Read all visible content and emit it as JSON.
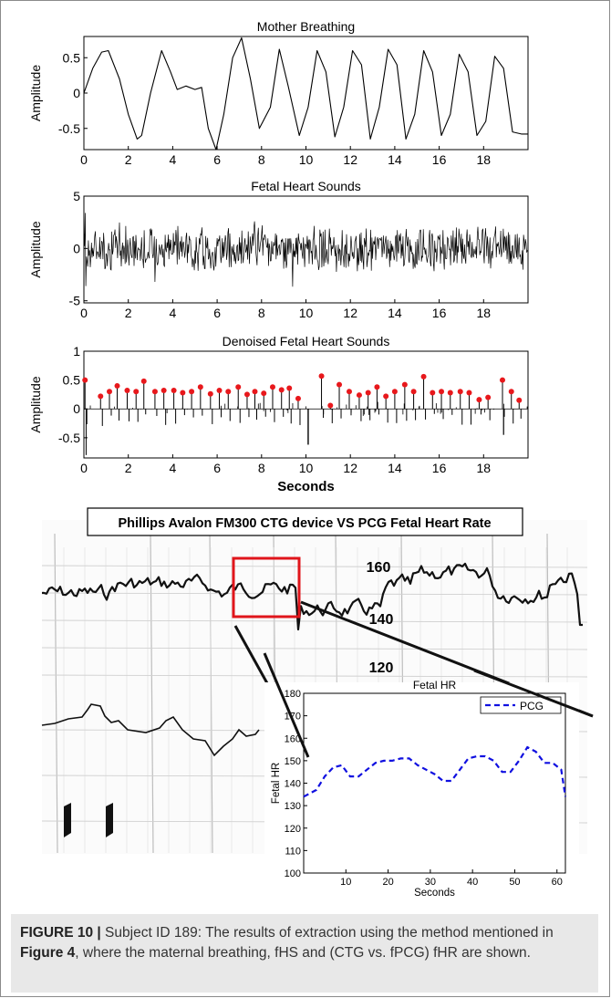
{
  "chart_data": [
    {
      "type": "line",
      "title": "Mother Breathing",
      "xlabel": "",
      "ylabel": "Amplitude",
      "xlim": [
        0,
        20
      ],
      "ylim": [
        -0.8,
        0.8
      ],
      "xticks": [
        "0",
        "2",
        "4",
        "6",
        "8",
        "10",
        "12",
        "14",
        "16",
        "18"
      ],
      "yticks": [
        "0.5",
        "0",
        "-0.5"
      ],
      "series": [
        {
          "x": [
            0,
            0.4,
            0.8,
            1.1,
            1.6,
            2.0,
            2.4,
            2.6,
            3.0,
            3.5,
            3.9,
            4.2,
            4.6,
            5.0,
            5.3,
            5.6,
            5.95,
            6.3,
            6.7,
            7.1,
            7.5,
            7.9,
            8.4,
            8.8,
            9.2,
            9.7,
            10.1,
            10.5,
            10.9,
            11.3,
            11.7,
            12.1,
            12.5,
            12.9,
            13.3,
            13.7,
            14.1,
            14.5,
            14.9,
            15.3,
            15.7,
            16.1,
            16.5,
            16.9,
            17.3,
            17.7,
            18.1,
            18.5,
            18.9,
            19.3,
            19.7,
            20.0
          ],
          "y": [
            0.0,
            0.35,
            0.58,
            0.6,
            0.2,
            -0.3,
            -0.65,
            -0.6,
            0.0,
            0.6,
            0.3,
            0.05,
            0.1,
            0.05,
            0.08,
            -0.5,
            -0.8,
            -0.3,
            0.5,
            0.78,
            0.2,
            -0.5,
            -0.2,
            0.62,
            0.1,
            -0.6,
            -0.2,
            0.6,
            0.3,
            -0.62,
            -0.2,
            0.6,
            0.4,
            -0.65,
            -0.2,
            0.62,
            0.4,
            -0.65,
            -0.3,
            0.6,
            0.3,
            -0.6,
            -0.3,
            0.55,
            0.3,
            -0.6,
            -0.4,
            0.52,
            0.35,
            -0.55,
            -0.58,
            -0.58
          ]
        }
      ]
    },
    {
      "type": "line",
      "title": "Fetal Heart Sounds",
      "xlabel": "",
      "ylabel": "Amplitude",
      "xlim": [
        0,
        20
      ],
      "ylim": [
        -5.2,
        5
      ],
      "xticks": [
        "0",
        "2",
        "4",
        "6",
        "8",
        "10",
        "12",
        "14",
        "16",
        "18"
      ],
      "yticks": [
        "5",
        "0",
        "-5"
      ],
      "series": [
        {
          "description": "dense noisy signal",
          "amplitude_range": [
            -3.5,
            3.5
          ],
          "x_range": [
            0,
            20
          ]
        }
      ]
    },
    {
      "type": "line",
      "title": "Denoised Fetal Heart Sounds",
      "xlabel": "Seconds",
      "ylabel": "Amplitude",
      "xlim": [
        0,
        20
      ],
      "ylim": [
        -0.85,
        1
      ],
      "xticks": [
        "0",
        "2",
        "4",
        "6",
        "8",
        "10",
        "12",
        "14",
        "16",
        "18"
      ],
      "yticks": [
        "1",
        "0.5",
        "0",
        "-0.5"
      ],
      "peaks": {
        "x": [
          0.05,
          0.75,
          1.15,
          1.5,
          1.95,
          2.35,
          2.7,
          3.2,
          3.6,
          4.05,
          4.45,
          4.85,
          5.25,
          5.7,
          6.1,
          6.5,
          6.95,
          7.35,
          7.7,
          8.1,
          8.5,
          8.9,
          9.25,
          9.65,
          10.7,
          11.1,
          11.5,
          11.95,
          12.4,
          12.8,
          13.2,
          13.6,
          14.0,
          14.45,
          14.85,
          15.3,
          15.7,
          16.1,
          16.5,
          16.95,
          17.35,
          17.8,
          18.2,
          18.85,
          19.25,
          19.6
        ],
        "y": [
          0.5,
          0.22,
          0.3,
          0.4,
          0.32,
          0.3,
          0.48,
          0.3,
          0.32,
          0.32,
          0.28,
          0.3,
          0.38,
          0.26,
          0.32,
          0.3,
          0.38,
          0.25,
          0.3,
          0.27,
          0.38,
          0.33,
          0.36,
          0.18,
          0.57,
          0.06,
          0.42,
          0.3,
          0.24,
          0.28,
          0.38,
          0.22,
          0.3,
          0.42,
          0.3,
          0.56,
          0.28,
          0.3,
          0.28,
          0.3,
          0.28,
          0.16,
          0.2,
          0.5,
          0.3,
          0.15
        ]
      }
    },
    {
      "type": "line",
      "title": "Phillips Avalon FM300 CTG device VS PCG Fetal Heart Rate",
      "tick_labels": [
        "160",
        "140",
        "120"
      ],
      "inset_title": "Fetal HR",
      "note": "scanned CTG strip with red highlight box"
    },
    {
      "type": "line",
      "title": "Fetal HR",
      "xlabel": "Seconds",
      "ylabel": "Fetal HR",
      "xlim": [
        0,
        62
      ],
      "ylim": [
        100,
        180
      ],
      "xticks": [
        "10",
        "20",
        "30",
        "40",
        "50",
        "60"
      ],
      "yticks": [
        "180",
        "170",
        "160",
        "150",
        "140",
        "130",
        "120",
        "110",
        "100"
      ],
      "legend": "top-right",
      "series": [
        {
          "name": "PCG",
          "style": "dashed",
          "color": "#1010e0",
          "x": [
            0,
            3,
            5,
            7,
            9,
            11,
            13,
            15,
            17,
            19,
            21,
            23,
            25,
            27,
            29,
            31,
            33,
            35,
            37,
            39,
            41,
            43,
            45,
            47,
            49,
            51,
            53,
            55,
            57,
            59,
            61,
            62
          ],
          "y": [
            134,
            137,
            143,
            147,
            148,
            143,
            143,
            146,
            149,
            150,
            150,
            151,
            151,
            148,
            146,
            144,
            141,
            141,
            146,
            151,
            152,
            152,
            150,
            145,
            145,
            150,
            156,
            154,
            149,
            149,
            146,
            134
          ]
        }
      ]
    }
  ],
  "caption": {
    "label": "FIGURE 10 |",
    "text_a": " Subject ID 189: The results of extraction using the method mentioned in ",
    "ref": "Figure 4",
    "text_b": ", where the maternal breathing, fHS and (CTG vs. fPCG) fHR are shown."
  }
}
